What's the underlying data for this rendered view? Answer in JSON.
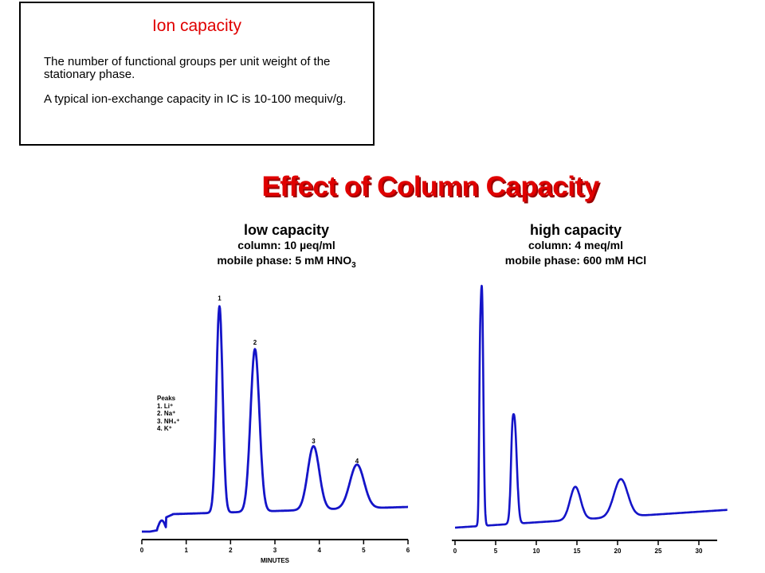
{
  "definition": {
    "title": "Ion capacity",
    "paragraph1": "The number of functional groups per unit weight of the stationary phase.",
    "paragraph2": "A typical ion-exchange capacity in IC is 10-100 mequiv/g."
  },
  "title": "Effect of Column Capacity",
  "colors": {
    "title": "#e00000",
    "trace": "#1414c8"
  },
  "chart_data": [
    {
      "type": "line",
      "subtitle": "low capacity",
      "column": "column: 10 µeq/ml",
      "mobile_phase_prefix": "mobile phase: 5 mM HNO",
      "mobile_phase_sub": "3",
      "xlabel": "MINUTES",
      "xlim": [
        0,
        6
      ],
      "x_ticks": [
        "0",
        "1",
        "2",
        "3",
        "4",
        "5",
        "6"
      ],
      "legend": {
        "title": "Peaks",
        "entries": [
          "1. Li⁺",
          "2. Na⁺",
          "3. NH₄⁺",
          "4. K⁺"
        ]
      },
      "peaks": [
        {
          "label": "1",
          "time": 1.75,
          "height": 0.94
        },
        {
          "label": "2",
          "time": 2.55,
          "height": 0.74
        },
        {
          "label": "3",
          "time": 3.87,
          "height": 0.29
        },
        {
          "label": "4",
          "time": 4.85,
          "height": 0.2
        }
      ]
    },
    {
      "type": "line",
      "subtitle": "high capacity",
      "column": "column: 4 meq/ml",
      "mobile_phase_prefix": "mobile phase: 600 mM HCl",
      "mobile_phase_sub": "",
      "x_ticks": [
        "0",
        "5",
        "10",
        "15",
        "20",
        "25",
        "30"
      ],
      "peaks": [
        {
          "time": 3.3,
          "height": 1.0
        },
        {
          "time": 7.3,
          "height": 0.44
        },
        {
          "time": 14.8,
          "height": 0.14
        },
        {
          "time": 20.4,
          "height": 0.16
        }
      ]
    }
  ]
}
